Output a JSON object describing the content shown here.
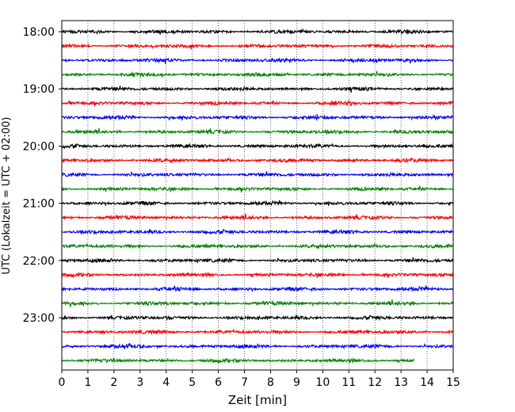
{
  "chart_data": {
    "type": "line",
    "title": "",
    "xlabel": "Zeit  [min]",
    "ylabel": "UTC (Lokalzeit = UTC + 02:00)",
    "xlim": [
      0,
      15
    ],
    "x_ticks": [
      0,
      1,
      2,
      3,
      4,
      5,
      6,
      7,
      8,
      9,
      10,
      11,
      12,
      13,
      14,
      15
    ],
    "x_tick_labels": [
      "0",
      "1",
      "2",
      "3",
      "4",
      "5",
      "6",
      "7",
      "8",
      "9",
      "10",
      "11",
      "12",
      "13",
      "14",
      "15"
    ],
    "x_grid": true,
    "y_grid": false,
    "legend": "none",
    "row_interval_minutes": 15,
    "start_time": "18:00",
    "y_tick_labels": [
      "18:00",
      "19:00",
      "20:00",
      "21:00",
      "22:00",
      "23:00"
    ],
    "color_cycle": [
      "#000000",
      "#ff0000",
      "#0000ff",
      "#008000"
    ],
    "rows": [
      {
        "time": "18:00",
        "color": "#000000",
        "x_end": 15
      },
      {
        "time": "18:15",
        "color": "#ff0000",
        "x_end": 15
      },
      {
        "time": "18:30",
        "color": "#0000ff",
        "x_end": 15
      },
      {
        "time": "18:45",
        "color": "#008000",
        "x_end": 15
      },
      {
        "time": "19:00",
        "color": "#000000",
        "x_end": 15
      },
      {
        "time": "19:15",
        "color": "#ff0000",
        "x_end": 15
      },
      {
        "time": "19:30",
        "color": "#0000ff",
        "x_end": 15
      },
      {
        "time": "19:45",
        "color": "#008000",
        "x_end": 15
      },
      {
        "time": "20:00",
        "color": "#000000",
        "x_end": 15
      },
      {
        "time": "20:15",
        "color": "#ff0000",
        "x_end": 15
      },
      {
        "time": "20:30",
        "color": "#0000ff",
        "x_end": 15
      },
      {
        "time": "20:45",
        "color": "#008000",
        "x_end": 15
      },
      {
        "time": "21:00",
        "color": "#000000",
        "x_end": 15
      },
      {
        "time": "21:15",
        "color": "#ff0000",
        "x_end": 15
      },
      {
        "time": "21:30",
        "color": "#0000ff",
        "x_end": 15
      },
      {
        "time": "21:45",
        "color": "#008000",
        "x_end": 15
      },
      {
        "time": "22:00",
        "color": "#000000",
        "x_end": 15
      },
      {
        "time": "22:15",
        "color": "#ff0000",
        "x_end": 15
      },
      {
        "time": "22:30",
        "color": "#0000ff",
        "x_end": 15
      },
      {
        "time": "22:45",
        "color": "#008000",
        "x_end": 15
      },
      {
        "time": "23:00",
        "color": "#000000",
        "x_end": 15
      },
      {
        "time": "23:15",
        "color": "#ff0000",
        "x_end": 15
      },
      {
        "time": "23:30",
        "color": "#0000ff",
        "x_end": 15
      },
      {
        "time": "23:45",
        "color": "#008000",
        "x_end": 13.5
      }
    ]
  }
}
